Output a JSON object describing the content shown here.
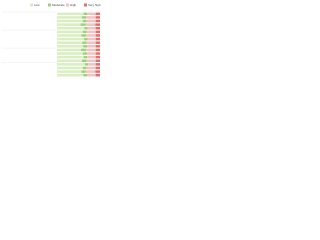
{
  "chart_data": {
    "type": "hbar_stacked",
    "categories": [
      null,
      null,
      null,
      null,
      null,
      null,
      null,
      null,
      null,
      null,
      null,
      null,
      null,
      null,
      null,
      null,
      null,
      null
    ],
    "series": [
      {
        "name": "Low",
        "color": "#d9efc2",
        "values": [
          62,
          58,
          60,
          55,
          64,
          60,
          57,
          63,
          59,
          61,
          56,
          60,
          62,
          58,
          65,
          60,
          57,
          61
        ]
      },
      {
        "name": "Moderate",
        "color": "#9fd17a",
        "values": [
          8,
          10,
          9,
          12,
          7,
          9,
          11,
          8,
          10,
          9,
          12,
          10,
          8,
          11,
          7,
          9,
          10,
          9
        ]
      },
      {
        "name": "High",
        "color": "#f4c2c2",
        "values": [
          20,
          22,
          21,
          22,
          19,
          21,
          22,
          19,
          21,
          20,
          22,
          20,
          20,
          21,
          18,
          21,
          22,
          20
        ]
      },
      {
        "name": "Very high",
        "color": "#e07070",
        "values": [
          10,
          10,
          10,
          11,
          10,
          10,
          10,
          10,
          10,
          10,
          10,
          10,
          10,
          10,
          10,
          10,
          11,
          10
        ]
      }
    ],
    "xlim": [
      0,
      100
    ]
  }
}
